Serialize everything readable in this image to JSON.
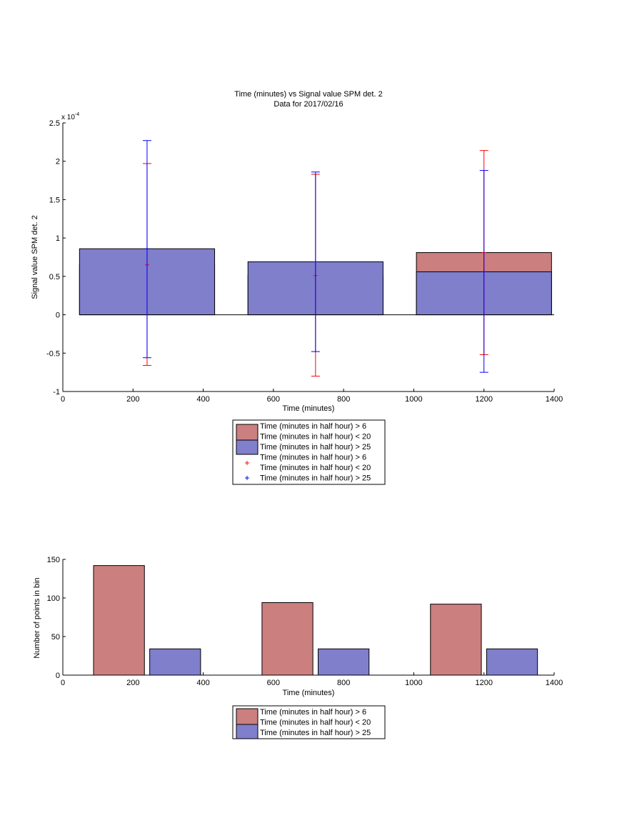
{
  "chart_data": [
    {
      "type": "bar",
      "title": "Time (minutes) vs Signal value SPM det. 2",
      "subtitle": "Data for 2017/02/16",
      "xlabel": "Time (minutes)",
      "ylabel": "Signal value SPM det. 2",
      "exponent_label": "x 10",
      "exponent_value": "-4",
      "xlim": [
        0,
        1400
      ],
      "ylim": [
        -1,
        2.5
      ],
      "x_ticks": [
        "0",
        "200",
        "400",
        "600",
        "800",
        "1000",
        "1200",
        "1400"
      ],
      "y_ticks": [
        "-1",
        "-0.5",
        "0",
        "0.5",
        "1",
        "1.5",
        "2",
        "2.5"
      ],
      "categories": [
        240,
        720,
        1200
      ],
      "bar_width": 385,
      "series": [
        {
          "name": "Time (minutes in half hour) > 6",
          "name_line2": "Time (minutes in half hour) < 20",
          "color": "#cc7f7f",
          "values": [
            0.65,
            0.51,
            0.81
          ],
          "error_low": [
            -0.66,
            -0.8,
            -0.52
          ],
          "error_high": [
            1.97,
            1.83,
            2.14
          ],
          "error_color": "#ff0000"
        },
        {
          "name": "Time (minutes in half hour) > 25",
          "color": "#7f7fcc",
          "values": [
            0.86,
            0.69,
            0.56
          ],
          "error_low": [
            -0.56,
            -0.48,
            -0.75
          ],
          "error_high": [
            2.27,
            1.86,
            1.88
          ],
          "error_color": "#0000ff"
        }
      ],
      "legend": {
        "placement": "below",
        "entries": [
          "Time (minutes in half hour) > 6",
          "Time (minutes in half hour) < 20",
          "Time (minutes in half hour) > 25",
          "Time (minutes in half hour) > 6",
          "Time (minutes in half hour) < 20",
          "Time (minutes in half hour) > 25"
        ]
      }
    },
    {
      "type": "bar",
      "xlabel": "Time (minutes)",
      "ylabel": "Number of points in bin",
      "xlim": [
        0,
        1400
      ],
      "ylim": [
        0,
        150
      ],
      "x_ticks": [
        "0",
        "200",
        "400",
        "600",
        "800",
        "1000",
        "1200",
        "1400"
      ],
      "y_ticks": [
        "0",
        "50",
        "100",
        "150"
      ],
      "bars": [
        {
          "x": 160,
          "width": 145,
          "value": 142,
          "series": 0
        },
        {
          "x": 390,
          "width": 145,
          "value": 0,
          "series": 0
        },
        {
          "x": 640,
          "width": 145,
          "value": 94,
          "series": 0
        },
        {
          "x": 1120,
          "width": 145,
          "value": 92,
          "series": 0
        },
        {
          "x": 320,
          "width": 145,
          "value": 34,
          "series": 1
        },
        {
          "x": 800,
          "width": 145,
          "value": 34,
          "series": 1
        },
        {
          "x": 1280,
          "width": 145,
          "value": 34,
          "series": 1
        }
      ],
      "series": [
        {
          "name": "Time (minutes in half hour) > 6",
          "name_line2": "Time (minutes in half hour) < 20",
          "color": "#cc7f7f"
        },
        {
          "name": "Time (minutes in half hour) > 25",
          "color": "#7f7fcc"
        }
      ],
      "legend": {
        "placement": "below",
        "entries": [
          "Time (minutes in half hour) > 6",
          "Time (minutes in half hour) < 20",
          "Time (minutes in half hour) > 25"
        ]
      }
    }
  ]
}
